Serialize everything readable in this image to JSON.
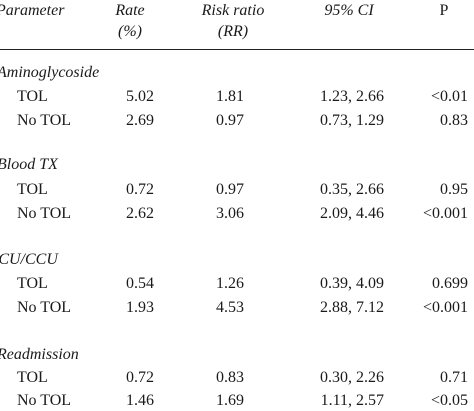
{
  "header": {
    "parameter": "Parameter",
    "rate_l1": "Rate",
    "rate_l2": "(%)",
    "rr_l1": "Risk ratio",
    "rr_l2": "(RR)",
    "ci": "95% CI",
    "p": "P"
  },
  "groups": [
    {
      "name": "Aminoglycoside",
      "rows": [
        {
          "label": "TOL",
          "rate": "5.02",
          "rr": "1.81",
          "ci": "1.23, 2.66",
          "p": "<0.01"
        },
        {
          "label": "No TOL",
          "rate": "2.69",
          "rr": "0.97",
          "ci": "0.73, 1.29",
          "p": "0.83"
        }
      ]
    },
    {
      "name": "Blood TX",
      "rows": [
        {
          "label": "TOL",
          "rate": "0.72",
          "rr": "0.97",
          "ci": "0.35, 2.66",
          "p": "0.95"
        },
        {
          "label": "No TOL",
          "rate": "2.62",
          "rr": "3.06",
          "ci": "2.09, 4.46",
          "p": "<0.001"
        }
      ]
    },
    {
      "name": "ICU/CCU",
      "rows": [
        {
          "label": "TOL",
          "rate": "0.54",
          "rr": "1.26",
          "ci": "0.39, 4.09",
          "p": "0.699"
        },
        {
          "label": "No TOL",
          "rate": "1.93",
          "rr": "4.53",
          "ci": "2.88, 7.12",
          "p": "<0.001"
        }
      ]
    },
    {
      "name": "Readmission",
      "rows": [
        {
          "label": "TOL",
          "rate": "0.72",
          "rr": "0.83",
          "ci": "0.30, 2.26",
          "p": "0.71"
        },
        {
          "label": "No TOL",
          "rate": "1.46",
          "rr": "1.69",
          "ci": "1.11, 2.57",
          "p": "<0.05"
        }
      ]
    }
  ]
}
